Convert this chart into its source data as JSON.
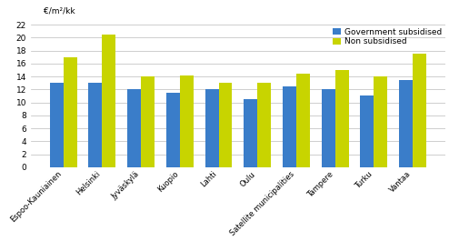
{
  "categories": [
    "Espoo-Kauniainen",
    "Helsinki",
    "Jyväskylä",
    "Kuopio",
    "Lahti",
    "Oulu",
    "Satellite municipalities",
    "Tampere",
    "Turku",
    "Vantaa"
  ],
  "gov_subsidised": [
    13.0,
    13.0,
    12.0,
    11.5,
    12.0,
    10.5,
    12.5,
    12.0,
    11.0,
    13.5
  ],
  "non_subsidised": [
    17.0,
    20.5,
    14.0,
    14.2,
    13.0,
    13.0,
    14.5,
    15.0,
    14.0,
    17.5
  ],
  "gov_color": "#3A7DC9",
  "non_color": "#C8D400",
  "ylabel": "€/m²/kk",
  "ylim": [
    0,
    22
  ],
  "yticks": [
    0,
    2,
    4,
    6,
    8,
    10,
    12,
    14,
    16,
    18,
    20,
    22
  ],
  "legend_gov": "Government subsidised",
  "legend_non": "Non subsidised",
  "background_color": "#ffffff",
  "grid_color": "#bbbbbb"
}
